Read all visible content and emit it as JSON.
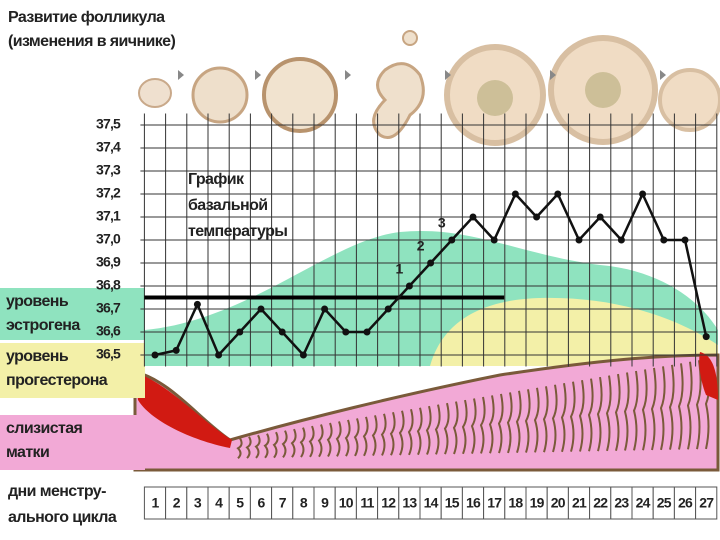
{
  "chart_data": {
    "type": "line",
    "title_lines": [
      "Развитие фолликула",
      "(изменения в яичнике)"
    ],
    "chart_label_lines": [
      "График",
      "базальной",
      "температуры"
    ],
    "categories": [
      "1",
      "2",
      "3",
      "4",
      "5",
      "6",
      "7",
      "8",
      "9",
      "10",
      "11",
      "12",
      "13",
      "14",
      "15",
      "16",
      "17",
      "18",
      "19",
      "20",
      "21",
      "22",
      "23",
      "24",
      "25",
      "26",
      "27"
    ],
    "values": [
      36.5,
      36.52,
      36.72,
      36.5,
      36.6,
      36.7,
      36.6,
      36.5,
      36.7,
      36.6,
      36.6,
      36.7,
      36.8,
      36.9,
      37.0,
      37.1,
      37.0,
      37.2,
      37.1,
      37.2,
      37.0,
      37.1,
      37.0,
      37.2,
      37.0,
      37.0,
      36.58
    ],
    "color": "#111111",
    "ylim": [
      36.45,
      37.55
    ],
    "yticks": [
      {
        "value": 36.5,
        "label": "36,5"
      },
      {
        "value": 36.6,
        "label": "36,6"
      },
      {
        "value": 36.7,
        "label": "36,7"
      },
      {
        "value": 36.8,
        "label": "36,8"
      },
      {
        "value": 36.9,
        "label": "36,9"
      },
      {
        "value": 37.0,
        "label": "37,0"
      },
      {
        "value": 37.1,
        "label": "37,1"
      },
      {
        "value": 37.2,
        "label": "37,2"
      },
      {
        "value": 37.3,
        "label": "37,3"
      },
      {
        "value": 37.4,
        "label": "37,4"
      },
      {
        "value": 37.5,
        "label": "37,5"
      }
    ],
    "grid": true,
    "reference_line": {
      "value": 36.75
    },
    "annotations": [
      {
        "label": "1",
        "at": "13"
      },
      {
        "label": "2",
        "at": "14"
      },
      {
        "label": "3",
        "at": "15"
      }
    ],
    "bands": [
      {
        "label_lines": [
          "уровень",
          "эстрогена"
        ],
        "color": "#8fe3bf"
      },
      {
        "label_lines": [
          "уровень",
          "прогестерона"
        ],
        "color": "#f3f0a8"
      },
      {
        "label_lines": [
          "слизистая",
          "матки"
        ],
        "color": "#f2a9d6"
      }
    ],
    "x_label_lines": [
      "дни менстру-",
      "ального цикла"
    ]
  }
}
